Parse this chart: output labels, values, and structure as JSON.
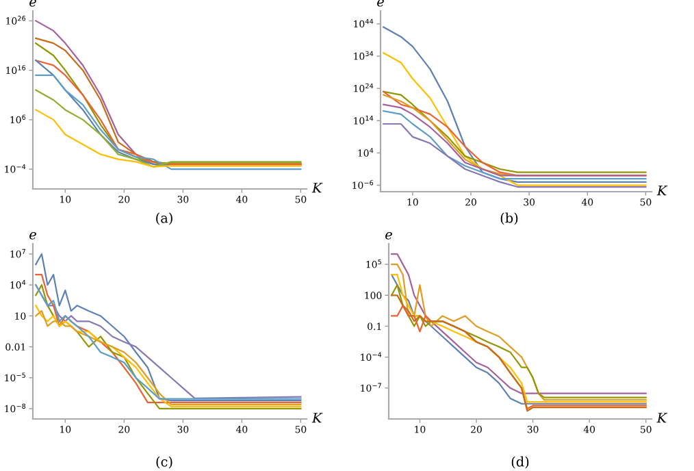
{
  "chart_data": [
    {
      "type": "line",
      "title": "(a)",
      "xlabel": "K",
      "ylabel": "e",
      "log": "y",
      "grid": false,
      "legend": false,
      "marker": "none",
      "line_style": "solid",
      "xlim": [
        4.5,
        51
      ],
      "xticks": [
        10,
        20,
        30,
        40,
        50
      ],
      "ylim": [
        1e-08,
        1e+28
      ],
      "yticks": [
        {
          "value": 1e+26,
          "label": "10$^{26}$"
        },
        {
          "value": 1e+16,
          "label": "10$^{16}$"
        },
        {
          "value": 1000000.0,
          "label": "10$^{6}$"
        },
        {
          "value": 0.0001,
          "label": "10$^{−4}$"
        }
      ],
      "x": [
        5,
        8,
        10,
        13,
        16,
        19,
        22,
        25,
        28,
        50
      ],
      "series": [
        {
          "color": "#a5609d",
          "values": [
            1e+26,
            1e+24,
            3e+21,
            1e+17,
            100000000000.0,
            1000.0,
            0.1,
            0.003,
            0.001,
            0.001
          ]
        },
        {
          "color": "#c56e1a",
          "values": [
            3e+22,
            3e+21,
            1e+20,
            1e+16,
            10000000000.0,
            30.0,
            0.1,
            0.003,
            0.001,
            0.001
          ]
        },
        {
          "color": "#929600",
          "values": [
            3e+21,
            1e+19,
            1e+16,
            100000000000.0,
            100000.0,
            1.0,
            0.03,
            0.001,
            0.002,
            0.002
          ]
        },
        {
          "color": "#eb6235",
          "values": [
            1e+18,
            1e+17,
            1000000000000000.0,
            100000000000.0,
            1000000.0,
            1.0,
            0.1,
            0.001,
            0.001,
            0.001
          ]
        },
        {
          "color": "#5e81b5",
          "values": [
            1e+18,
            1000000000000000.0,
            1000000000000.0,
            100000000.0,
            1000.0,
            0.3,
            0.01,
            0.001,
            0.0005,
            0.0005
          ]
        },
        {
          "color": "#5d9ec7",
          "values": [
            1000000000000000.0,
            1000000000000000.0,
            1000000000000.0,
            1000000000.0,
            10000.0,
            1.0,
            0.03,
            0.01,
            0.0001,
            0.0001
          ]
        },
        {
          "color": "#8fb032",
          "values": [
            1000000000000.0,
            10000000000.0,
            100000000.0,
            1000000.0,
            1000.0,
            0.1,
            0.01,
            0.0003,
            0.003,
            0.003
          ]
        },
        {
          "color": "#ffbf00",
          "values": [
            100000000.0,
            1000000.0,
            1000.0,
            10.0,
            0.1,
            0.01,
            0.003,
            0.0003,
            0.0005,
            0.0005
          ]
        }
      ]
    },
    {
      "type": "line",
      "title": "(b)",
      "xlabel": "K",
      "ylabel": "e",
      "log": "y",
      "grid": false,
      "legend": false,
      "marker": "none",
      "line_style": "solid",
      "xlim": [
        4.5,
        51
      ],
      "xticks": [
        10,
        20,
        30,
        40,
        50
      ],
      "ylim": [
        1e-08,
        1e+48
      ],
      "yticks": [
        {
          "value": 1e+44,
          "label": "10$^{44}$"
        },
        {
          "value": 1e+34,
          "label": "10$^{34}$"
        },
        {
          "value": 1e+24,
          "label": "10$^{24}$"
        },
        {
          "value": 100000000000000.0,
          "label": "10$^{14}$"
        },
        {
          "value": 10000.0,
          "label": "10$^{4}$"
        },
        {
          "value": 1e-06,
          "label": "10$^{−6}$"
        }
      ],
      "x": [
        5,
        8,
        10,
        13,
        16,
        19,
        22,
        25,
        28,
        50
      ],
      "series": [
        {
          "color": "#5e81b5",
          "values": [
            1e+43,
            1e+40,
            1e+37,
            1e+30,
            1e+20,
            1000000.0,
            0.01,
            0.0001,
            1e-05,
            1e-05
          ]
        },
        {
          "color": "#ffbf00",
          "values": [
            1e+35,
            1e+32,
            1e+27,
            1e+21,
            1000000000000.0,
            1000.0,
            0.1,
            0.001,
            1e-06,
            1e-06
          ]
        },
        {
          "color": "#929600",
          "values": [
            1e+23,
            1e+22,
            1e+19,
            100000000000000.0,
            1000000000.0,
            1000.0,
            10.0,
            0.1,
            0.01,
            0.01
          ]
        },
        {
          "color": "#eb6235",
          "values": [
            1e+23,
            1e+19,
            1e+18,
            1e+16,
            1000000000000.0,
            1000000.0,
            10.0,
            0.01,
            0.001,
            0.001
          ]
        },
        {
          "color": "#e19c24",
          "values": [
            1e+22,
            1e+20,
            1e+18,
            100000000000000.0,
            100000000.0,
            100.0,
            0.1,
            0.003,
            0.001,
            0.001
          ]
        },
        {
          "color": "#a5609d",
          "values": [
            1e+19,
            1e+18,
            1e+16,
            1000000000000.0,
            10000000.0,
            10.0,
            0.1,
            0.001,
            0.001,
            0.001
          ]
        },
        {
          "color": "#5d9ec7",
          "values": [
            1e+17,
            1e+16,
            10000000000000.0,
            1000000000.0,
            1000.0,
            1.0,
            0.01,
            0.0001,
            0.0001,
            0.0001
          ]
        },
        {
          "color": "#8778b3",
          "values": [
            10000000000000.0,
            10000000000000.0,
            1000000000.0,
            10000000.0,
            1000.0,
            0.1,
            0.001,
            1e-05,
            3e-07,
            3e-07
          ]
        }
      ]
    },
    {
      "type": "line",
      "title": "(c)",
      "xlabel": "K",
      "ylabel": "e",
      "log": "y",
      "grid": false,
      "legend": false,
      "marker": "none",
      "line_style": "solid",
      "xlim": [
        4.5,
        51
      ],
      "xticks": [
        10,
        20,
        30,
        40,
        50
      ],
      "ylim": [
        1e-09,
        100000000.0
      ],
      "yticks": [
        {
          "value": 10000000.0,
          "label": "10$^{7}$"
        },
        {
          "value": 10000.0,
          "label": "10$^{4}$"
        },
        10,
        0.01,
        {
          "value": 1e-05,
          "label": "10$^{−5}$"
        },
        {
          "value": 1e-08,
          "label": "10$^{−8}$"
        }
      ],
      "x": [
        5,
        6,
        7,
        8,
        9,
        10,
        11,
        12,
        14,
        16,
        18,
        20,
        22,
        24,
        26,
        28,
        30,
        32,
        50
      ],
      "series": [
        {
          "color": "#5e81b5",
          "values": [
            1000000.0,
            10000000.0,
            10000.0,
            100000.0,
            100.0,
            3000.0,
            30.0,
            100.0,
            30.0,
            10.0,
            1.0,
            0.1,
            0.003,
            0.0001,
            1e-07,
            6e-08,
            6e-08,
            6e-08,
            6e-08
          ]
        },
        {
          "color": "#8778b3",
          "values": [
            10000.0,
            1000.0,
            100.0,
            100.0,
            10.0,
            3.0,
            10.0,
            3.0,
            3.0,
            1.0,
            0.1,
            0.03,
            0.01,
            0.001,
            0.0001,
            1e-05,
            1e-06,
            1e-07,
            1.4e-07
          ]
        },
        {
          "color": "#eb6235",
          "values": [
            100000.0,
            100000.0,
            1000.0,
            100.0,
            1.0,
            10.0,
            3.0,
            1.0,
            0.3,
            0.03,
            0.003,
            0.0001,
            3e-06,
            4e-08,
            4e-08,
            4e-08,
            4e-08,
            4e-08,
            4e-08
          ]
        },
        {
          "color": "#929600",
          "values": [
            1000.0,
            10000.0,
            100.0,
            10.0,
            1.0,
            3.0,
            1.0,
            0.3,
            0.01,
            0.1,
            0.003,
            0.001,
            1e-05,
            3e-07,
            1e-08,
            1e-08,
            1e-08,
            1e-08,
            1e-08
          ]
        },
        {
          "color": "#ffbf00",
          "values": [
            100.0,
            10.0,
            3.0,
            10.0,
            1.0,
            3.0,
            1.0,
            0.3,
            0.3,
            0.03,
            0.01,
            0.001,
            0.0001,
            3e-06,
            1e-07,
            1.6e-08,
            1.6e-08,
            1.6e-08,
            1.6e-08
          ]
        },
        {
          "color": "#e19c24",
          "values": [
            10.0,
            30.0,
            1.0,
            3.0,
            3.0,
            1.0,
            1.0,
            0.3,
            0.1,
            0.03,
            0.01,
            0.003,
            0.0003,
            1e-05,
            3e-07,
            2.5e-08,
            2.5e-08,
            2.5e-08,
            2.5e-08
          ]
        },
        {
          "color": "#5d9ec7",
          "values": [
            10000.0,
            1000.0,
            100.0,
            300.0,
            3.0,
            10.0,
            3.0,
            1.0,
            0.1,
            0.003,
            0.001,
            0.0003,
            1e-05,
            1e-06,
            9e-08,
            9e-08,
            9e-08,
            9e-08,
            9e-08
          ]
        }
      ]
    },
    {
      "type": "line",
      "title": "(d)",
      "xlabel": "K",
      "ylabel": "e",
      "log": "y",
      "grid": false,
      "legend": false,
      "marker": "none",
      "line_style": "solid",
      "xlim": [
        4.5,
        51
      ],
      "xticks": [
        10,
        20,
        30,
        40,
        50
      ],
      "ylim": [
        1e-10,
        10000000.0
      ],
      "yticks": [
        {
          "value": 100000.0,
          "label": "10$^{5}$"
        },
        100,
        0.1,
        {
          "value": 0.0001,
          "label": "10$^{−4}$"
        },
        {
          "value": 1e-07,
          "label": "10$^{−7}$"
        }
      ],
      "x": [
        5,
        6,
        7,
        8,
        9,
        10,
        11,
        12,
        14,
        16,
        18,
        20,
        22,
        24,
        26,
        28,
        29,
        30,
        31,
        32,
        50
      ],
      "series": [
        {
          "color": "#a5609d",
          "values": [
            1000000.0,
            1000000.0,
            100000.0,
            10000.0,
            100.0,
            10.0,
            1.0,
            0.3,
            0.03,
            0.003,
            0.0003,
            3e-05,
            1e-05,
            1e-06,
            1e-07,
            3e-08,
            3e-08,
            3e-08,
            3e-08,
            3e-08,
            3e-08
          ]
        },
        {
          "color": "#5e81b5",
          "values": [
            10000.0,
            1000.0,
            100.0,
            30.0,
            1.0,
            1.0,
            0.3,
            0.1,
            0.01,
            0.001,
            0.0001,
            1e-05,
            3e-06,
            3e-07,
            1e-08,
            3e-09,
            3e-09,
            3e-09,
            3e-09,
            3e-09,
            3e-09
          ]
        },
        {
          "color": "#e19c24",
          "values": [
            100000.0,
            100000.0,
            10000.0,
            1.0,
            1.0,
            1000.0,
            1.0,
            0.1,
            1.0,
            0.3,
            1.0,
            0.1,
            0.03,
            0.01,
            0.001,
            0.0001,
            1e-05,
            1e-06,
            3e-08,
            7e-09,
            7e-09
          ]
        },
        {
          "color": "#929600",
          "values": [
            100.0,
            1000.0,
            10.0,
            1.0,
            0.1,
            1.0,
            0.1,
            0.3,
            0.3,
            0.1,
            0.03,
            0.01,
            0.003,
            0.001,
            0.0003,
            1e-05,
            1e-05,
            1e-06,
            3e-08,
            1.2e-08,
            1.2e-08
          ]
        },
        {
          "color": "#ffbf00",
          "values": [
            10000.0,
            10000.0,
            100.0,
            10.0,
            1.0,
            1.0,
            0.3,
            0.3,
            0.1,
            0.03,
            0.01,
            0.003,
            0.001,
            0.0001,
            1e-05,
            3e-07,
            4.5e-09,
            4.5e-09,
            4.5e-09,
            4.5e-09,
            4.5e-09
          ]
        },
        {
          "color": "#eb6235",
          "values": [
            1.0,
            1.0,
            10.0,
            1.0,
            1.0,
            0.03,
            1.0,
            0.3,
            0.3,
            0.1,
            0.03,
            0.003,
            0.001,
            0.0001,
            3e-06,
            1e-07,
            1e-09,
            2e-09,
            2e-09,
            2e-09,
            2e-09
          ]
        },
        {
          "color": "#c56e1a",
          "values": [
            100.0,
            100.0,
            10.0,
            3.0,
            0.3,
            1.0,
            0.3,
            0.3,
            0.3,
            0.1,
            0.03,
            0.003,
            0.001,
            0.0001,
            3e-06,
            1e-07,
            6e-10,
            1.3e-09,
            1.3e-09,
            1.3e-09,
            1.3e-09
          ]
        }
      ]
    }
  ]
}
